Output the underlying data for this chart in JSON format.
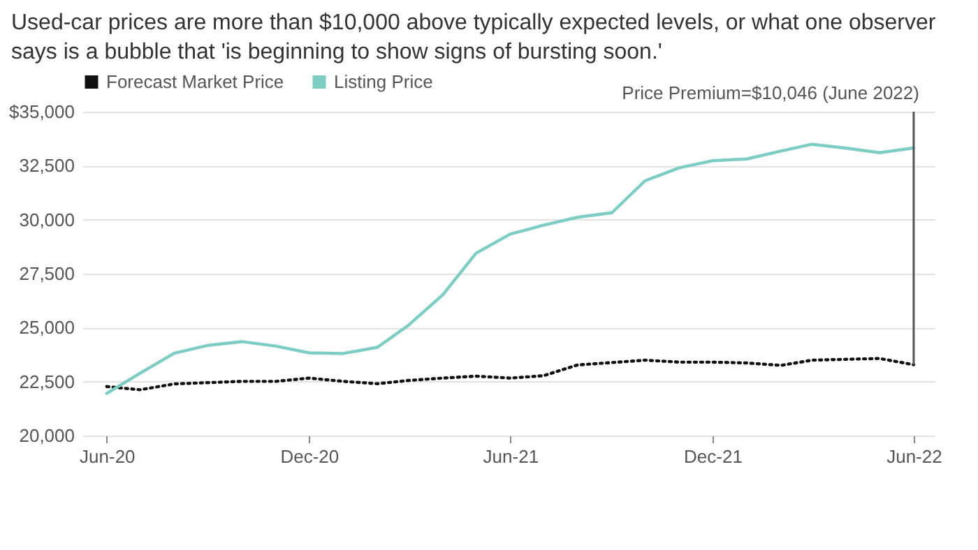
{
  "chart_data": {
    "type": "line",
    "title": "Used-car prices are more than $10,000 above typically expected levels, or what one observer says is a bubble that 'is beginning to show signs of bursting soon.'",
    "x": [
      "2020-06",
      "2020-07",
      "2020-08",
      "2020-09",
      "2020-10",
      "2020-11",
      "2020-12",
      "2021-01",
      "2021-02",
      "2021-03",
      "2021-04",
      "2021-05",
      "2021-06",
      "2021-07",
      "2021-08",
      "2021-09",
      "2021-10",
      "2021-11",
      "2021-12",
      "2022-01",
      "2022-02",
      "2022-03",
      "2022-04",
      "2022-05",
      "2022-06"
    ],
    "series": [
      {
        "name": "Forecast Market Price",
        "color": "#111111",
        "line_style": "dotted",
        "values": [
          22270,
          22120,
          22390,
          22450,
          22510,
          22510,
          22660,
          22510,
          22400,
          22550,
          22660,
          22750,
          22660,
          22770,
          23270,
          23380,
          23490,
          23400,
          23400,
          23360,
          23250,
          23490,
          23530,
          23570,
          23280
        ]
      },
      {
        "name": "Listing Price",
        "color": "#7ecdc4",
        "line_style": "solid",
        "values": [
          21950,
          22880,
          23810,
          24180,
          24350,
          24140,
          23830,
          23800,
          24090,
          25110,
          26520,
          28440,
          29330,
          29740,
          30110,
          30320,
          31800,
          32400,
          32730,
          32810,
          33180,
          33490,
          33310,
          33100,
          33320
        ]
      }
    ],
    "xlim": [
      "2020-05-10",
      "2022-06-20"
    ],
    "xticks": [
      {
        "value": "2020-06",
        "label": "Jun-20"
      },
      {
        "value": "2020-12",
        "label": "Dec-20"
      },
      {
        "value": "2021-06",
        "label": "Jun-21"
      },
      {
        "value": "2021-12",
        "label": "Dec-21"
      },
      {
        "value": "2022-06",
        "label": "Jun-22"
      }
    ],
    "ylim": [
      20000,
      35000
    ],
    "yticks": [
      {
        "value": 20000,
        "label": "20,000"
      },
      {
        "value": 22500,
        "label": "22,500"
      },
      {
        "value": 25000,
        "label": "25,000"
      },
      {
        "value": 27500,
        "label": "27,500"
      },
      {
        "value": 30000,
        "label": "30,000"
      },
      {
        "value": 32500,
        "label": "32,500"
      },
      {
        "value": 35000,
        "label": "$35,000"
      }
    ],
    "grid": "y",
    "legend": "top left",
    "ref_lines": [
      {
        "axis": "x",
        "value": "2022-06",
        "label": "Price Premium=$10,046 (June 2022)",
        "color": "#555555"
      }
    ]
  }
}
